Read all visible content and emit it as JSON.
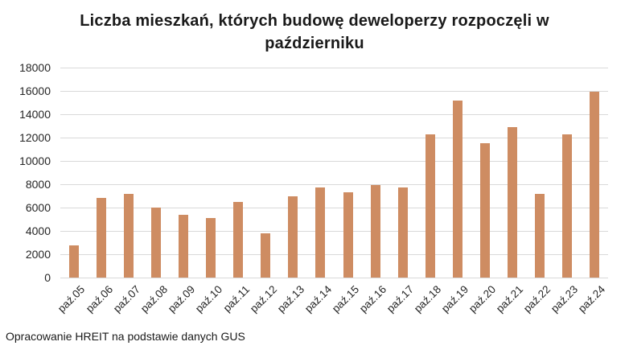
{
  "footer": "Opracowanie HREIT na podstawie danych GUS",
  "chart_data": {
    "type": "bar",
    "title": "Liczba mieszkań, których budowę deweloperzy rozpoczęli w październiku",
    "categories": [
      "paź.05",
      "paź.06",
      "paź.07",
      "paź.08",
      "paź.09",
      "paź.10",
      "paź.11",
      "paź.12",
      "paź.13",
      "paź.14",
      "paź.15",
      "paź.16",
      "paź.17",
      "paź.18",
      "paź.19",
      "paź.20",
      "paź.21",
      "paź.22",
      "paź.23",
      "paź.24"
    ],
    "values": [
      2750,
      6800,
      7150,
      6000,
      5400,
      5100,
      6450,
      3800,
      6950,
      7700,
      7300,
      7900,
      7750,
      12250,
      15200,
      11500,
      12900,
      7150,
      12300,
      15950
    ],
    "xlabel": "",
    "ylabel": "",
    "ylim": [
      0,
      18000
    ],
    "y_ticks": [
      0,
      2000,
      4000,
      6000,
      8000,
      10000,
      12000,
      14000,
      16000,
      18000
    ],
    "grid": "horizontal",
    "legend_position": "none",
    "bar_color": "#ce8c62",
    "gridline_color": "#d9d9d9",
    "source_note": "Opracowanie HREIT na podstawie danych GUS"
  }
}
